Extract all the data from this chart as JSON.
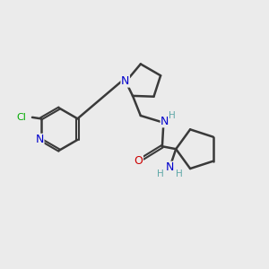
{
  "bg_color": "#ebebeb",
  "bond_color": "#3a3a3a",
  "bond_width": 1.8,
  "atom_colors": {
    "N": "#0000cc",
    "O": "#cc0000",
    "Cl": "#00aa00",
    "H": "#5fa8a8"
  },
  "font_size": 8,
  "fig_size": [
    3.0,
    3.0
  ],
  "dpi": 100
}
